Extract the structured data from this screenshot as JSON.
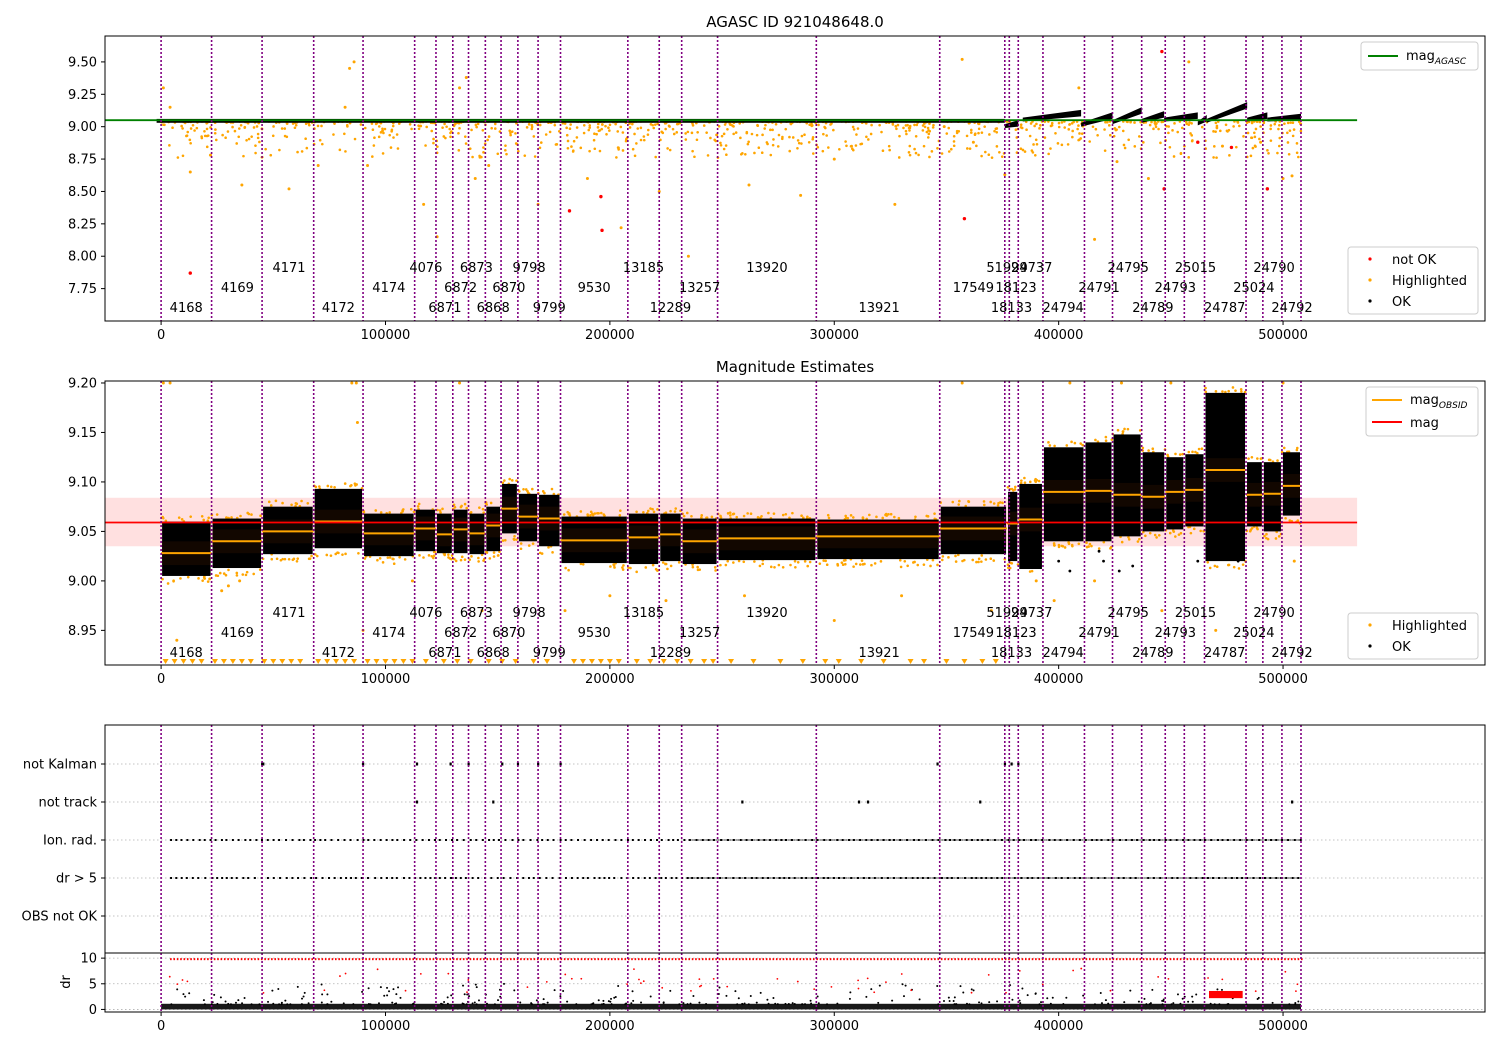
{
  "chart_data": [
    {
      "type": "scatter",
      "title": "AGASC ID 921048648.0",
      "xlim": [
        -25000,
        590000
      ],
      "ylim": [
        7.5,
        9.7
      ],
      "yticks": [
        7.75,
        8.0,
        8.25,
        8.5,
        8.75,
        9.0,
        9.25,
        9.5
      ],
      "ytick_labels": [
        "7.75",
        "8.00",
        "8.25",
        "8.50",
        "8.75",
        "9.00",
        "9.25",
        "9.50"
      ],
      "xticks": [
        0,
        100000,
        200000,
        300000,
        400000,
        500000
      ],
      "xtick_labels": [
        "0",
        "100000",
        "200000",
        "300000",
        "400000",
        "500000"
      ],
      "reference_line": {
        "name": "mag_AGASC",
        "y": 9.05,
        "x_range": [
          -25000,
          533000
        ],
        "color": "#008000"
      },
      "ok_band": {
        "x_start": -2000,
        "x_end": 509000,
        "y_low": 9.03,
        "y_high": 9.06
      },
      "highlighted_sample": [
        [
          1000,
          9.3
        ],
        [
          4000,
          9.15
        ],
        [
          13000,
          8.65
        ],
        [
          22000,
          8.78
        ],
        [
          36000,
          8.55
        ],
        [
          57000,
          8.52
        ],
        [
          70000,
          8.7
        ],
        [
          82000,
          9.15
        ],
        [
          84000,
          9.45
        ],
        [
          86000,
          9.5
        ],
        [
          92000,
          8.7
        ],
        [
          117000,
          8.4
        ],
        [
          123000,
          8.15
        ],
        [
          133000,
          9.3
        ],
        [
          136000,
          9.38
        ],
        [
          140000,
          8.6
        ],
        [
          146000,
          8.7
        ],
        [
          168000,
          8.4
        ],
        [
          190000,
          8.6
        ],
        [
          205000,
          8.22
        ],
        [
          222000,
          8.5
        ],
        [
          235000,
          8.0
        ],
        [
          262000,
          8.55
        ],
        [
          285000,
          8.47
        ],
        [
          300000,
          8.75
        ],
        [
          327000,
          8.4
        ],
        [
          349000,
          9.0
        ],
        [
          357000,
          9.52
        ],
        [
          362000,
          8.88
        ],
        [
          376000,
          8.63
        ],
        [
          409000,
          9.3
        ],
        [
          416000,
          8.13
        ],
        [
          426000,
          8.73
        ],
        [
          440000,
          8.6
        ],
        [
          458000,
          9.5
        ],
        [
          473000,
          8.85
        ],
        [
          490000,
          8.88
        ],
        [
          500000,
          8.6
        ],
        [
          504000,
          8.62
        ]
      ],
      "not_ok_points": [
        [
          13000,
          7.87
        ],
        [
          182000,
          8.35
        ],
        [
          196000,
          8.46
        ],
        [
          196500,
          8.2
        ],
        [
          358000,
          8.29
        ],
        [
          446000,
          9.58
        ],
        [
          447000,
          8.52
        ],
        [
          462000,
          8.88
        ],
        [
          477000,
          8.84
        ],
        [
          493000,
          8.52
        ]
      ],
      "ok_drift_segments": [
        [
          376000,
          382000,
          9.01,
          9.06
        ],
        [
          384000,
          410000,
          9.06,
          9.14
        ],
        [
          410000,
          424000,
          9.02,
          9.12
        ],
        [
          424000,
          437000,
          9.04,
          9.16
        ],
        [
          437000,
          447000,
          9.05,
          9.13
        ],
        [
          447000,
          462000,
          9.06,
          9.12
        ],
        [
          462000,
          466000,
          9.03,
          9.1
        ],
        [
          466000,
          484000,
          9.05,
          9.2
        ],
        [
          484000,
          493000,
          9.06,
          9.12
        ],
        [
          493000,
          508000,
          9.06,
          9.11
        ]
      ],
      "legend_line": "mag",
      "legend_line_sub": "AGASC",
      "legend_points": [
        "not OK",
        "Highlighted",
        "OK"
      ]
    },
    {
      "type": "scatter",
      "title": "Magnitude Estimates",
      "xlim": [
        -25000,
        590000
      ],
      "ylim": [
        8.915,
        9.202
      ],
      "yticks": [
        8.95,
        9.0,
        9.05,
        9.1,
        9.15,
        9.2
      ],
      "ytick_labels": [
        "8.95",
        "9.00",
        "9.05",
        "9.10",
        "9.15",
        "9.20"
      ],
      "xticks": [
        0,
        100000,
        200000,
        300000,
        400000,
        500000
      ],
      "xtick_labels": [
        "0",
        "100000",
        "200000",
        "300000",
        "400000",
        "500000"
      ],
      "mag_line": {
        "name": "mag",
        "y": 9.059,
        "band": [
          9.035,
          9.084
        ],
        "x_range": [
          -25000,
          533000
        ],
        "color": "#ff0000"
      },
      "obsid_segments": [
        {
          "x0": 0,
          "x1": 22500,
          "mag": 9.028,
          "lo": 9.005,
          "hi": 9.06
        },
        {
          "x0": 22500,
          "x1": 45000,
          "mag": 9.04,
          "lo": 9.013,
          "hi": 9.063
        },
        {
          "x0": 45000,
          "x1": 68000,
          "mag": 9.05,
          "lo": 9.027,
          "hi": 9.075
        },
        {
          "x0": 68000,
          "x1": 90000,
          "mag": 9.06,
          "lo": 9.033,
          "hi": 9.093
        },
        {
          "x0": 90000,
          "x1": 113000,
          "mag": 9.048,
          "lo": 9.025,
          "hi": 9.068
        },
        {
          "x0": 113000,
          "x1": 122500,
          "mag": 9.053,
          "lo": 9.03,
          "hi": 9.072
        },
        {
          "x0": 122500,
          "x1": 130000,
          "mag": 9.047,
          "lo": 9.028,
          "hi": 9.068
        },
        {
          "x0": 130000,
          "x1": 137000,
          "mag": 9.052,
          "lo": 9.028,
          "hi": 9.072
        },
        {
          "x0": 137000,
          "x1": 144500,
          "mag": 9.048,
          "lo": 9.027,
          "hi": 9.068
        },
        {
          "x0": 144500,
          "x1": 151500,
          "mag": 9.056,
          "lo": 9.03,
          "hi": 9.075
        },
        {
          "x0": 151500,
          "x1": 159000,
          "mag": 9.073,
          "lo": 9.048,
          "hi": 9.098
        },
        {
          "x0": 159000,
          "x1": 168000,
          "mag": 9.065,
          "lo": 9.04,
          "hi": 9.088
        },
        {
          "x0": 168000,
          "x1": 178000,
          "mag": 9.063,
          "lo": 9.035,
          "hi": 9.087
        },
        {
          "x0": 178000,
          "x1": 208000,
          "mag": 9.041,
          "lo": 9.018,
          "hi": 9.065
        },
        {
          "x0": 208000,
          "x1": 222000,
          "mag": 9.044,
          "lo": 9.017,
          "hi": 9.068
        },
        {
          "x0": 222000,
          "x1": 232000,
          "mag": 9.047,
          "lo": 9.02,
          "hi": 9.068
        },
        {
          "x0": 232000,
          "x1": 248000,
          "mag": 9.04,
          "lo": 9.017,
          "hi": 9.063
        },
        {
          "x0": 248000,
          "x1": 292000,
          "mag": 9.043,
          "lo": 9.021,
          "hi": 9.063
        },
        {
          "x0": 292000,
          "x1": 347000,
          "mag": 9.045,
          "lo": 9.022,
          "hi": 9.062
        },
        {
          "x0": 347000,
          "x1": 377000,
          "mag": 9.053,
          "lo": 9.027,
          "hi": 9.075
        },
        {
          "x0": 377000,
          "x1": 382000,
          "mag": 9.058,
          "lo": 9.02,
          "hi": 9.09
        },
        {
          "x0": 382000,
          "x1": 393000,
          "mag": 9.062,
          "lo": 9.012,
          "hi": 9.098
        },
        {
          "x0": 393000,
          "x1": 411500,
          "mag": 9.09,
          "lo": 9.04,
          "hi": 9.135
        },
        {
          "x0": 411500,
          "x1": 424000,
          "mag": 9.091,
          "lo": 9.04,
          "hi": 9.14
        },
        {
          "x0": 424000,
          "x1": 437000,
          "mag": 9.087,
          "lo": 9.045,
          "hi": 9.148
        },
        {
          "x0": 437000,
          "x1": 447500,
          "mag": 9.085,
          "lo": 9.05,
          "hi": 9.13
        },
        {
          "x0": 447500,
          "x1": 456000,
          "mag": 9.09,
          "lo": 9.052,
          "hi": 9.125
        },
        {
          "x0": 456000,
          "x1": 465000,
          "mag": 9.092,
          "lo": 9.055,
          "hi": 9.128
        },
        {
          "x0": 465000,
          "x1": 483500,
          "mag": 9.112,
          "lo": 9.02,
          "hi": 9.19
        },
        {
          "x0": 483500,
          "x1": 491000,
          "mag": 9.087,
          "lo": 9.055,
          "hi": 9.12
        },
        {
          "x0": 491000,
          "x1": 499500,
          "mag": 9.088,
          "lo": 9.05,
          "hi": 9.12
        },
        {
          "x0": 499500,
          "x1": 508000,
          "mag": 9.096,
          "lo": 9.066,
          "hi": 9.13
        }
      ],
      "highlighted_sample": [
        [
          1000,
          9.2
        ],
        [
          4000,
          9.2
        ],
        [
          7000,
          8.94
        ],
        [
          85000,
          9.2
        ],
        [
          87000,
          9.2
        ],
        [
          133000,
          9.2
        ],
        [
          87500,
          9.16
        ],
        [
          90000,
          8.95
        ],
        [
          27000,
          8.99
        ],
        [
          30000,
          8.995
        ],
        [
          35000,
          9.0
        ],
        [
          112000,
          9.0
        ],
        [
          143000,
          8.97
        ],
        [
          180000,
          8.97
        ],
        [
          200000,
          8.985
        ],
        [
          225000,
          8.98
        ],
        [
          260000,
          8.985
        ],
        [
          300000,
          8.96
        ],
        [
          330000,
          8.985
        ],
        [
          357000,
          9.2
        ],
        [
          370000,
          8.97
        ],
        [
          390000,
          9.0
        ],
        [
          398000,
          8.98
        ],
        [
          405000,
          9.2
        ],
        [
          428000,
          9.2
        ],
        [
          450000,
          9.2
        ],
        [
          470000,
          8.95
        ],
        [
          500000,
          9.2
        ],
        [
          505000,
          9.02
        ],
        [
          416000,
          9.0
        ],
        [
          446000,
          8.97
        ]
      ],
      "clip_markers_x": [
        2000,
        6000,
        10000,
        14000,
        18000,
        24000,
        28000,
        32000,
        36000,
        40000,
        46000,
        50000,
        54000,
        58000,
        62000,
        70000,
        74000,
        78000,
        82000,
        86000,
        92000,
        96000,
        100000,
        104000,
        108000,
        112000,
        118000,
        126000,
        132000,
        138000,
        146000,
        152000,
        158000,
        166000,
        172000,
        184000,
        188000,
        192000,
        196000,
        200000,
        204000,
        212000,
        218000,
        224000,
        230000,
        236000,
        242000,
        246000,
        254000,
        264000,
        276000,
        286000,
        296000,
        302000,
        312000,
        322000,
        334000,
        340000,
        350000,
        358000,
        366000,
        372000
      ],
      "ok_outliers": [
        [
          400000,
          9.02
        ],
        [
          405000,
          9.01
        ],
        [
          418000,
          9.03
        ],
        [
          420000,
          9.02
        ],
        [
          427000,
          9.01
        ],
        [
          433000,
          9.015
        ],
        [
          462000,
          9.02
        ],
        [
          470000,
          9.022
        ],
        [
          480000,
          9.02
        ]
      ],
      "legend_lines": [
        {
          "text": "mag",
          "sub": "OBSID"
        },
        {
          "text": "mag",
          "sub": ""
        }
      ],
      "legend_points": [
        "Highlighted",
        "OK"
      ]
    },
    {
      "type": "scatter",
      "title": "",
      "xlim": [
        -25000,
        590000
      ],
      "xticks": [
        0,
        100000,
        200000,
        300000,
        400000,
        500000
      ],
      "xtick_labels": [
        "0",
        "100000",
        "200000",
        "300000",
        "400000",
        "500000"
      ],
      "flag_rows": [
        "not Kalman",
        "not track",
        "Ion. rad.",
        "dr > 5",
        "OBS not OK"
      ],
      "flags": {
        "not Kalman": [
          45000,
          45500,
          90000,
          114000,
          129000,
          137000,
          152000,
          159000,
          168000,
          178000,
          346000,
          376000,
          379000,
          382000
        ],
        "not track": [
          114000,
          148000,
          259000,
          311000,
          315000,
          365000,
          504000
        ],
        "Ion. rad.": {
          "x0": 4000,
          "x1": 508000
        },
        "dr > 5": {
          "x0": 4000,
          "x1": 508000
        }
      },
      "dr_panel": {
        "ylabel": "dr",
        "yticks": [
          0,
          5,
          10
        ],
        "ytick_labels": [
          "0",
          "5",
          "10"
        ],
        "ylim": [
          -0.5,
          11
        ],
        "clip_line_y": 9.8,
        "highlight_block": {
          "x0": 467000,
          "x1": 482000,
          "y_low": 2.2,
          "y_high": 3.6
        }
      }
    }
  ],
  "obsids": {
    "boundaries": [
      0,
      22500,
      45000,
      68000,
      90000,
      113000,
      122500,
      130000,
      137000,
      144500,
      151500,
      159000,
      168000,
      178000,
      208000,
      222000,
      232000,
      248000,
      292000,
      347000,
      376000,
      378000,
      382000,
      393000,
      411500,
      424000,
      437000,
      447500,
      456000,
      465000,
      483500,
      491000,
      499500,
      508000
    ],
    "labels": [
      {
        "text": "4168",
        "x": 11200,
        "row": 3
      },
      {
        "text": "4169",
        "x": 34000,
        "row": 2
      },
      {
        "text": "4171",
        "x": 57000,
        "row": 1
      },
      {
        "text": "4172",
        "x": 79000,
        "row": 3
      },
      {
        "text": "4174",
        "x": 101500,
        "row": 2
      },
      {
        "text": "4076",
        "x": 118000,
        "row": 1
      },
      {
        "text": "6871",
        "x": 126500,
        "row": 3
      },
      {
        "text": "6872",
        "x": 133500,
        "row": 2
      },
      {
        "text": "6873",
        "x": 140500,
        "row": 1
      },
      {
        "text": "6868",
        "x": 148000,
        "row": 3
      },
      {
        "text": "6870",
        "x": 155000,
        "row": 2
      },
      {
        "text": "9798",
        "x": 164000,
        "row": 1
      },
      {
        "text": "9799",
        "x": 173000,
        "row": 3
      },
      {
        "text": "9530",
        "x": 193000,
        "row": 2
      },
      {
        "text": "13185",
        "x": 215000,
        "row": 1
      },
      {
        "text": "12289",
        "x": 227000,
        "row": 3
      },
      {
        "text": "13257",
        "x": 240000,
        "row": 2
      },
      {
        "text": "13920",
        "x": 270000,
        "row": 1
      },
      {
        "text": "13921",
        "x": 320000,
        "row": 3
      },
      {
        "text": "17549",
        "x": 362000,
        "row": 2
      },
      {
        "text": "51999",
        "x": 377000,
        "row": 1
      },
      {
        "text": "18133",
        "x": 379000,
        "row": 3
      },
      {
        "text": "18123",
        "x": 381000,
        "row": 2
      },
      {
        "text": "24737",
        "x": 388000,
        "row": 1
      },
      {
        "text": "24794",
        "x": 402000,
        "row": 3
      },
      {
        "text": "24791",
        "x": 418000,
        "row": 2
      },
      {
        "text": "24795",
        "x": 431000,
        "row": 1
      },
      {
        "text": "24789",
        "x": 442000,
        "row": 3
      },
      {
        "text": "24793",
        "x": 452000,
        "row": 2
      },
      {
        "text": "25015",
        "x": 461000,
        "row": 1
      },
      {
        "text": "24787",
        "x": 474000,
        "row": 3
      },
      {
        "text": "25024",
        "x": 487000,
        "row": 2
      },
      {
        "text": "24790",
        "x": 496000,
        "row": 1
      },
      {
        "text": "24792",
        "x": 504000,
        "row": 3
      }
    ]
  },
  "colors": {
    "ok": "#000000",
    "highlighted": "#ffa500",
    "not_ok": "#ff0000",
    "agasc_line": "#008000",
    "mag_line": "#ff0000",
    "mag_band": "#ffd6d6",
    "obsid_line": "#ffa500",
    "obsid_divider": "#800080",
    "dark_band": "#1a0a00",
    "grid": "#b0b0b0"
  }
}
